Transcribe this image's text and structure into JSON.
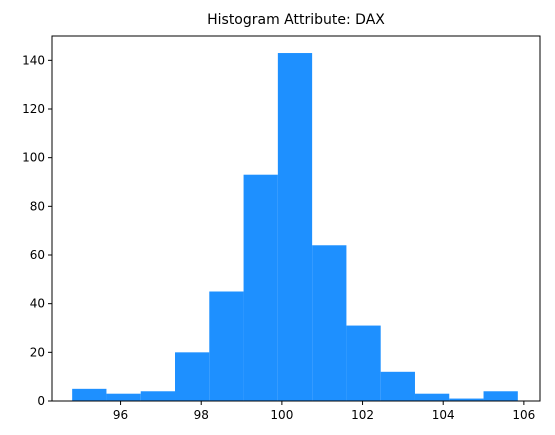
{
  "chart_data": {
    "type": "bar",
    "title": "Histogram Attribute: DAX",
    "xlabel": "",
    "ylabel": "",
    "bar_color": "#1E90FF",
    "xlim": [
      94.3,
      106.4
    ],
    "ylim": [
      0,
      150
    ],
    "x_ticks": [
      96,
      98,
      100,
      102,
      104,
      106
    ],
    "y_ticks": [
      0,
      20,
      40,
      60,
      80,
      100,
      120,
      140
    ],
    "bins": [
      {
        "x_start": 94.8,
        "x_end": 95.65,
        "count": 5
      },
      {
        "x_start": 95.65,
        "x_end": 96.5,
        "count": 3
      },
      {
        "x_start": 96.5,
        "x_end": 97.35,
        "count": 4
      },
      {
        "x_start": 97.35,
        "x_end": 98.2,
        "count": 20
      },
      {
        "x_start": 98.2,
        "x_end": 99.05,
        "count": 45
      },
      {
        "x_start": 99.05,
        "x_end": 99.9,
        "count": 93
      },
      {
        "x_start": 99.9,
        "x_end": 100.75,
        "count": 143
      },
      {
        "x_start": 100.75,
        "x_end": 101.6,
        "count": 64
      },
      {
        "x_start": 101.6,
        "x_end": 102.45,
        "count": 31
      },
      {
        "x_start": 102.45,
        "x_end": 103.3,
        "count": 12
      },
      {
        "x_start": 103.3,
        "x_end": 104.15,
        "count": 3
      },
      {
        "x_start": 104.15,
        "x_end": 105.0,
        "count": 1
      },
      {
        "x_start": 105.0,
        "x_end": 105.85,
        "count": 4
      }
    ],
    "grid": false,
    "legend": false
  }
}
